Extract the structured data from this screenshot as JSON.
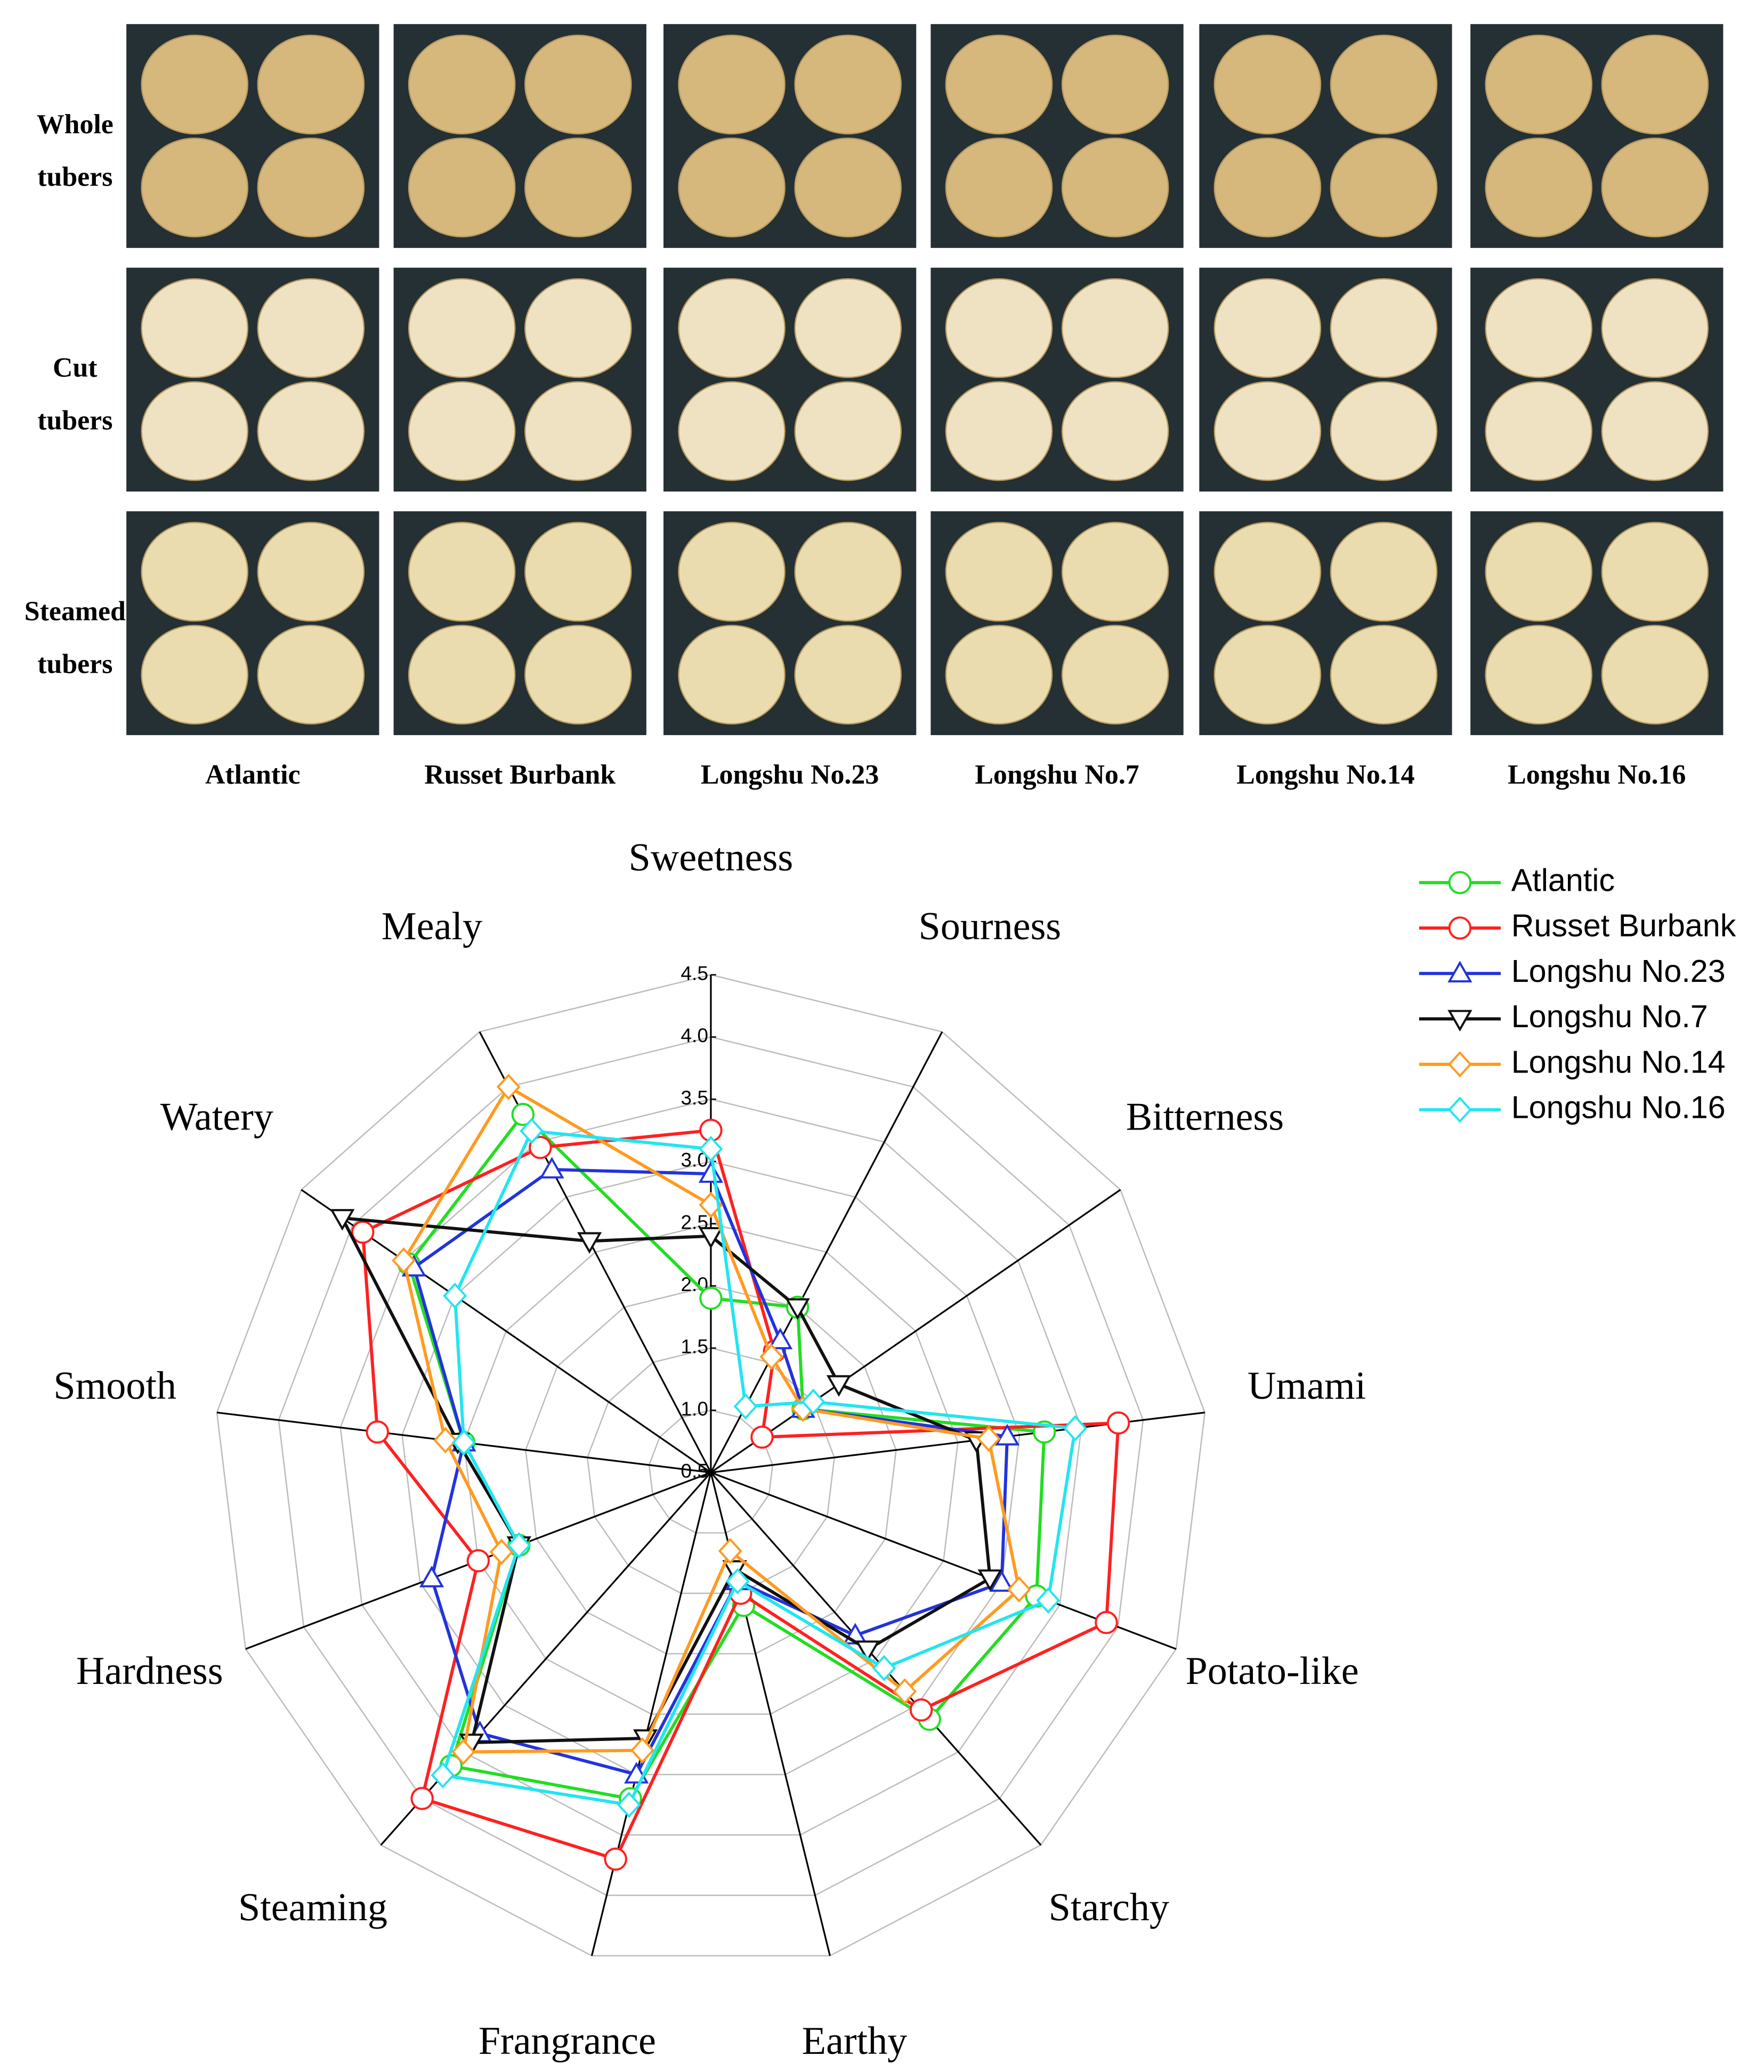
{
  "photo_panel": {
    "row_labels": [
      [
        "Whole",
        "tubers"
      ],
      [
        "Cut",
        "tubers"
      ],
      [
        "Steamed",
        "tubers"
      ]
    ],
    "column_labels": [
      "Atlantic",
      "Russet Burbank",
      "Longshu No.23",
      "Longshu No.7",
      "Longshu No.14",
      "Longshu No.16"
    ]
  },
  "chart_data": {
    "type": "radar",
    "categories": [
      "Sweetness",
      "Sourness",
      "Bitterness",
      "Umami",
      "Potato-like",
      "Starchy",
      "Earthy",
      "Frangrance",
      "Steaming",
      "Hardness",
      "Smooth",
      "Watery",
      "Mealy"
    ],
    "rlim": [
      0.5,
      4.5
    ],
    "rticks": [
      0.5,
      1.0,
      1.5,
      2.0,
      2.5,
      3.0,
      3.5,
      4.0,
      4.5
    ],
    "grid": true,
    "legend": "top-right",
    "series": [
      {
        "name": "Atlantic",
        "color": "#22dd22",
        "marker": "circle",
        "values": [
          1.9,
          2.0,
          1.4,
          3.2,
          3.3,
          3.15,
          1.6,
          3.2,
          3.65,
          2.15,
          2.5,
          3.45,
          3.75
        ]
      },
      {
        "name": "Russet Burbank",
        "color": "#ff2020",
        "marker": "circle",
        "values": [
          3.25,
          1.6,
          1.0,
          3.8,
          3.9,
          3.05,
          1.5,
          3.7,
          4.0,
          2.5,
          3.2,
          3.9,
          3.45
        ]
      },
      {
        "name": "Longshu No.23",
        "color": "#2233dd",
        "marker": "triangle-up",
        "values": [
          2.9,
          1.7,
          1.4,
          2.9,
          3.0,
          2.25,
          1.4,
          3.0,
          3.3,
          2.9,
          2.5,
          3.4,
          3.25
        ]
      },
      {
        "name": "Longshu No.7",
        "color": "#111111",
        "marker": "triangle-down",
        "values": [
          2.4,
          2.0,
          1.75,
          2.65,
          2.9,
          2.4,
          1.3,
          2.7,
          3.4,
          2.15,
          2.55,
          4.1,
          2.6
        ]
      },
      {
        "name": "Longshu No.14",
        "color": "#ff9a20",
        "marker": "diamond",
        "values": [
          2.65,
          1.55,
          1.4,
          2.75,
          3.15,
          2.85,
          1.15,
          2.8,
          3.5,
          2.3,
          2.65,
          3.5,
          4.0
        ]
      },
      {
        "name": "Longshu No.16",
        "color": "#22e5f0",
        "marker": "diamond",
        "values": [
          3.1,
          1.1,
          1.5,
          3.45,
          3.4,
          2.6,
          1.4,
          3.25,
          3.75,
          2.15,
          2.5,
          3.0,
          3.6
        ]
      }
    ]
  }
}
